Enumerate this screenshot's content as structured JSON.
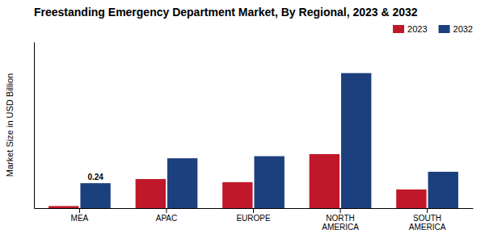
{
  "chart_data": {
    "type": "bar",
    "title": "Freestanding Emergency Department Market, By Regional, 2023 & 2032",
    "ylabel": "Market Size in USD Billion",
    "categories": [
      "MEA",
      "APAC",
      "EUROPE",
      "NORTH\nAMERICA",
      "SOUTH\nAMERICA"
    ],
    "series": [
      {
        "name": "2023",
        "color": "#c0182a",
        "values": [
          0.02,
          0.28,
          0.25,
          0.52,
          0.18
        ]
      },
      {
        "name": "2032",
        "color": "#1c3f7e",
        "values": [
          0.24,
          0.48,
          0.5,
          1.3,
          0.35
        ]
      }
    ],
    "annotations": [
      {
        "text": "0.24",
        "x": "MEA",
        "y": 0.24
      }
    ],
    "ylim": [
      0,
      1.6
    ],
    "grid": false,
    "legend": "upper right",
    "tick_labels": "x"
  }
}
